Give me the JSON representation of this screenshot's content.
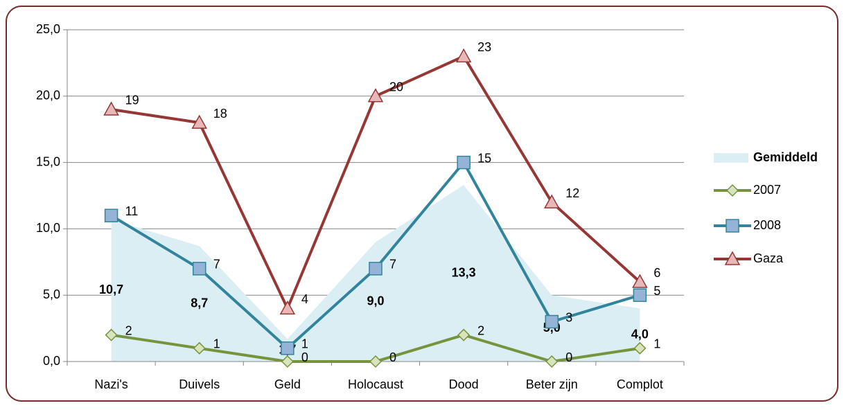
{
  "chart_data": {
    "type": "line",
    "categories": [
      "Nazi's",
      "Duivels",
      "Geld",
      "Holocaust",
      "Dood",
      "Beter zijn",
      "Complot"
    ],
    "series": [
      {
        "name": "Gemiddeld",
        "kind": "area",
        "color": "#dbeef4",
        "values": [
          10.7,
          8.7,
          1.7,
          9.0,
          13.3,
          5.0,
          4.0
        ],
        "value_labels": [
          "10,7",
          "8,7",
          "1,7",
          "9,0",
          "13,3",
          "5,0",
          "4,0"
        ]
      },
      {
        "name": "2007",
        "kind": "line",
        "marker": "diamond",
        "color": "#77933c",
        "marker_fill": "#d7e4bd",
        "values": [
          2,
          1,
          0,
          0,
          2,
          0,
          1
        ]
      },
      {
        "name": "2008",
        "kind": "line",
        "marker": "square",
        "color": "#31849b",
        "marker_fill": "#95b3d7",
        "values": [
          11,
          7,
          1,
          7,
          15,
          3,
          5
        ]
      },
      {
        "name": "Gaza",
        "kind": "line",
        "marker": "triangle",
        "color": "#953735",
        "marker_fill": "#e6b9b8",
        "values": [
          19,
          18,
          4,
          20,
          23,
          12,
          6
        ]
      }
    ],
    "ylim": [
      0,
      25
    ],
    "yticks": [
      {
        "value": 0,
        "label": "0,0"
      },
      {
        "value": 5,
        "label": "5,0"
      },
      {
        "value": 10,
        "label": "10,0"
      },
      {
        "value": 15,
        "label": "15,0"
      },
      {
        "value": 20,
        "label": "20,0"
      },
      {
        "value": 25,
        "label": "25,0"
      }
    ],
    "grid": true,
    "legend": "right"
  }
}
